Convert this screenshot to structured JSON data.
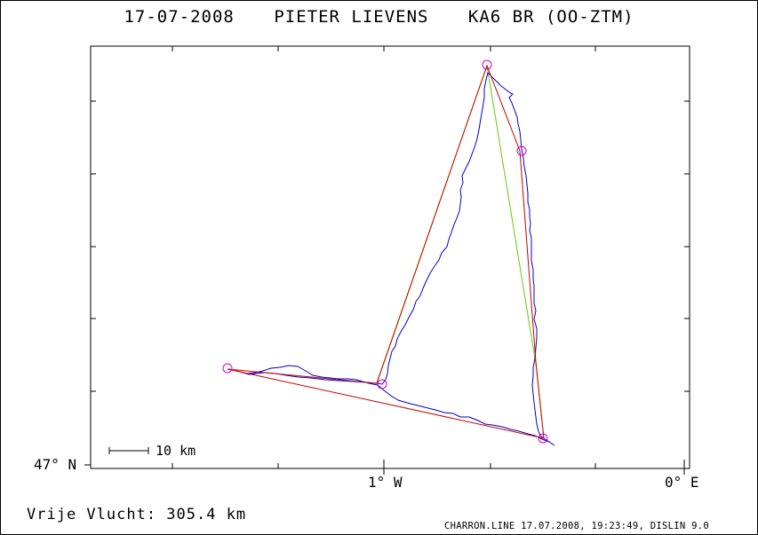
{
  "header": {
    "date": "17-07-2008",
    "pilot": "PIETER LIEVENS",
    "glider": "KA6 BR (OO-ZTM)"
  },
  "axes": {
    "lat_label": "47° N",
    "lon_label_1": "1° W",
    "lon_label_2": "0° E"
  },
  "scale_bar": {
    "label": "10 km"
  },
  "footer": {
    "result": "Vrije Vlucht:  305.4 km",
    "info": "CHARRON.LINE 17.07.2008, 19:23:49, DISLIN 9.0"
  },
  "colors": {
    "track": "#0000cc",
    "task_red": "#cc0000",
    "task_green": "#66cc00",
    "turnpoint": "#cc00cc"
  }
}
